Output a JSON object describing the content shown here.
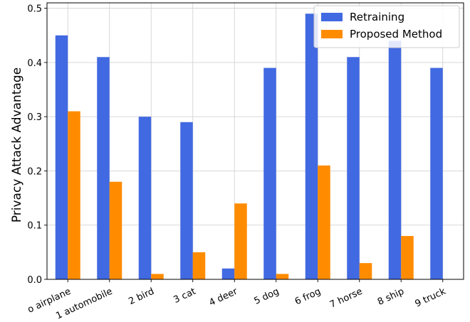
{
  "chart_data": {
    "type": "bar",
    "categories": [
      "o airplane",
      "1 automobile",
      "2 bird",
      "3 cat",
      "4 deer",
      "5 dog",
      "6 frog",
      "7 horse",
      "8 ship",
      "9 truck"
    ],
    "series": [
      {
        "name": "Retraining",
        "values": [
          0.45,
          0.41,
          0.3,
          0.29,
          0.02,
          0.39,
          0.49,
          0.41,
          0.44,
          0.39
        ],
        "color": "#4169e1"
      },
      {
        "name": "Proposed Method",
        "values": [
          0.31,
          0.18,
          0.01,
          0.05,
          0.14,
          0.01,
          0.21,
          0.03,
          0.08,
          0.0
        ],
        "color": "#ff8c00"
      }
    ],
    "title": "",
    "xlabel": "",
    "ylabel": "Privacy Attack Advantage",
    "ylim": [
      0,
      0.51
    ],
    "yticks": [
      0.0,
      0.1,
      0.2,
      0.3,
      0.4,
      0.5
    ],
    "ytick_labels": [
      "0.0",
      "0.1",
      "0.2",
      "0.3",
      "0.4",
      "0.5"
    ],
    "grid": true,
    "legend_position": "top-right"
  }
}
